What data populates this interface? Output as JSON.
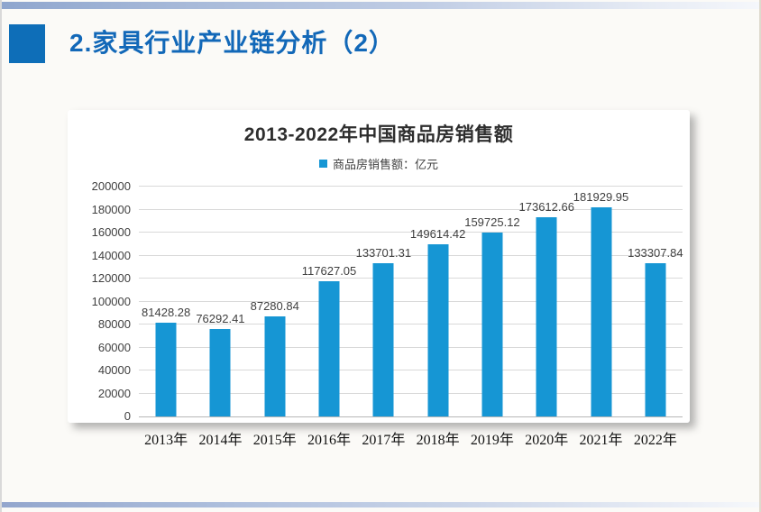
{
  "header": {
    "title": "2.家具行业产业链分析（2）"
  },
  "colors": {
    "title_blue": "#1268b8",
    "bullet_blue": "#0e6eb8",
    "bar_blue": "#1696d4",
    "gridline": "#d9d9d9",
    "label_gray": "#404040"
  },
  "chart_data": {
    "type": "bar",
    "title": "2013-2022年中国商品房销售额",
    "legend": "商品房销售额：亿元",
    "legend_position": "top",
    "grid": true,
    "categories": [
      "2013年",
      "2014年",
      "2015年",
      "2016年",
      "2017年",
      "2018年",
      "2019年",
      "2020年",
      "2021年",
      "2022年"
    ],
    "values": [
      81428.28,
      76292.41,
      87280.84,
      117627.05,
      133701.31,
      149614.42,
      159725.12,
      173612.66,
      181929.95,
      133307.84
    ],
    "xlabel": "",
    "ylabel": "",
    "ylim": [
      0,
      200000
    ],
    "ytick_step": 20000
  }
}
